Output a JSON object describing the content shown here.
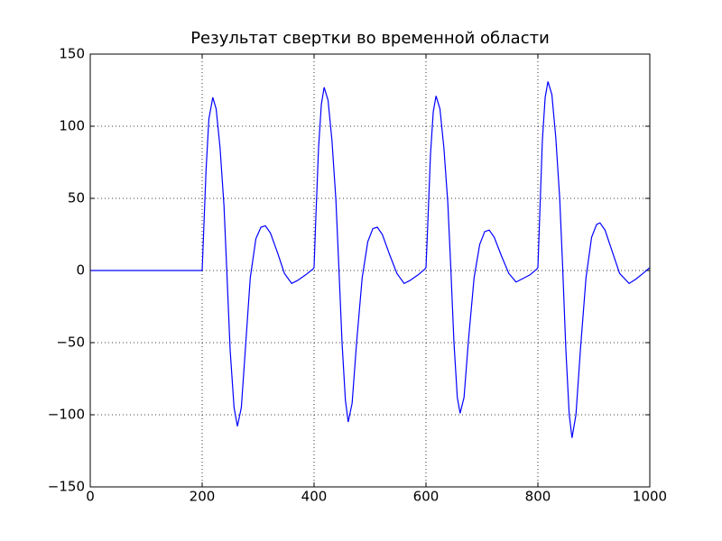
{
  "chart_data": {
    "type": "line",
    "title": "Результат свертки во временной области",
    "x": [
      0,
      200,
      203,
      207,
      212,
      219,
      225,
      232,
      239,
      244,
      250,
      257,
      263,
      270,
      278,
      286,
      296,
      305,
      313,
      322,
      335,
      347,
      360,
      370,
      385,
      398,
      400,
      403,
      408,
      413,
      418,
      425,
      432,
      439,
      444,
      450,
      456,
      461,
      468,
      476,
      486,
      496,
      505,
      513,
      522,
      535,
      548,
      561,
      571,
      586,
      598,
      600,
      603,
      608,
      613,
      618,
      625,
      632,
      639,
      644,
      650,
      656,
      661,
      668,
      676,
      686,
      696,
      705,
      713,
      722,
      735,
      748,
      761,
      771,
      786,
      798,
      800,
      803,
      808,
      813,
      818,
      825,
      832,
      839,
      844,
      850,
      856,
      861,
      868,
      876,
      886,
      896,
      905,
      911,
      920,
      933,
      946,
      963,
      975,
      988,
      1000
    ],
    "series": [
      {
        "color": "#0000ff",
        "values": [
          0,
          0,
          30,
          70,
          105,
          120,
          112,
          85,
          45,
          0,
          -55,
          -95,
          -108,
          -95,
          -50,
          -5,
          22,
          30,
          31,
          26,
          12,
          -2,
          -9,
          -7,
          -3,
          1,
          2,
          35,
          85,
          115,
          127,
          118,
          90,
          49,
          5,
          -50,
          -90,
          -105,
          -92,
          -50,
          -5,
          20,
          29,
          30,
          25,
          11,
          -2,
          -9,
          -7,
          -3,
          1,
          2,
          30,
          80,
          110,
          121,
          112,
          85,
          47,
          5,
          -50,
          -88,
          -99,
          -88,
          -48,
          -5,
          18,
          27,
          28,
          23,
          10,
          -2,
          -8,
          -6,
          -3,
          1,
          2,
          35,
          90,
          120,
          131,
          122,
          92,
          50,
          5,
          -55,
          -100,
          -116,
          -100,
          -55,
          -5,
          23,
          32,
          33,
          28,
          13,
          -2,
          -9,
          -6,
          -2,
          2
        ]
      }
    ],
    "xlim": [
      0,
      1000
    ],
    "xticks": [
      0,
      200,
      400,
      600,
      800,
      1000
    ],
    "ylim": [
      -150,
      150
    ],
    "yticks": [
      {
        "value": -150,
        "label": "−150"
      },
      {
        "value": -100,
        "label": "−100"
      },
      {
        "value": -50,
        "label": "−50"
      },
      0,
      50,
      100,
      150
    ],
    "grid": true
  }
}
